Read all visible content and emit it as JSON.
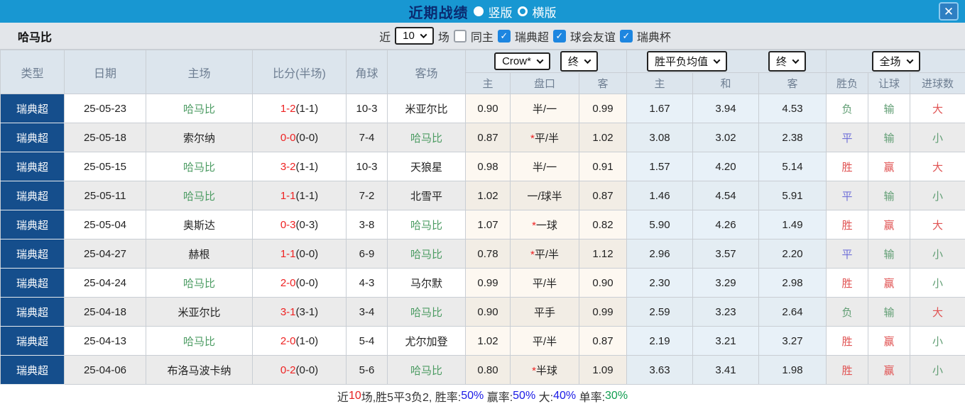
{
  "titlebar": {
    "title": "近期战绩",
    "radio_vertical": "竖版",
    "radio_horizontal": "横版",
    "close_label": "✕"
  },
  "filterbar": {
    "team": "哈马比",
    "near_label": "近",
    "count_value": "10",
    "matches_label": "场",
    "same_venue_label": "同主",
    "league_options": [
      "瑞典超",
      "球会友谊",
      "瑞典杯"
    ],
    "checkmark": "✓"
  },
  "header": {
    "col_type": "类型",
    "col_date": "日期",
    "col_home": "主场",
    "col_score": "比分(半场)",
    "col_corner": "角球",
    "col_away": "客场",
    "odds_company_select": "Crow*",
    "odds_stage_select": "终",
    "avg_select": "胜平负均值",
    "avg_stage_select": "终",
    "scope_select": "全场",
    "sub_home": "主",
    "sub_handicap": "盘口",
    "sub_away": "客",
    "sub_avg_home": "主",
    "sub_avg_draw": "和",
    "sub_avg_away": "客",
    "sub_result": "胜负",
    "sub_handicap_result": "让球",
    "sub_goals": "进球数"
  },
  "rows": [
    {
      "league": "瑞典超",
      "date": "25-05-23",
      "home": "哈马比",
      "home_green": true,
      "score": "1-2",
      "half": "(1-1)",
      "corner": "10-3",
      "away": "米亚尔比",
      "away_green": false,
      "odds_home": "0.90",
      "handicap": "半/一",
      "handicap_star": false,
      "odds_away": "0.99",
      "avg_home": "1.67",
      "avg_draw": "3.94",
      "avg_away": "4.53",
      "result": "负",
      "result_color": "green",
      "handicap_result": "输",
      "handicap_color": "green",
      "goals": "大",
      "goals_color": "red"
    },
    {
      "league": "瑞典超",
      "date": "25-05-18",
      "home": "索尔纳",
      "home_green": false,
      "score": "0-0",
      "half": "(0-0)",
      "corner": "7-4",
      "away": "哈马比",
      "away_green": true,
      "odds_home": "0.87",
      "handicap": "平/半",
      "handicap_star": true,
      "odds_away": "1.02",
      "avg_home": "3.08",
      "avg_draw": "3.02",
      "avg_away": "2.38",
      "result": "平",
      "result_color": "blue",
      "handicap_result": "输",
      "handicap_color": "green",
      "goals": "小",
      "goals_color": "green"
    },
    {
      "league": "瑞典超",
      "date": "25-05-15",
      "home": "哈马比",
      "home_green": true,
      "score": "3-2",
      "half": "(1-1)",
      "corner": "10-3",
      "away": "天狼星",
      "away_green": false,
      "odds_home": "0.98",
      "handicap": "半/一",
      "handicap_star": false,
      "odds_away": "0.91",
      "avg_home": "1.57",
      "avg_draw": "4.20",
      "avg_away": "5.14",
      "result": "胜",
      "result_color": "red",
      "handicap_result": "赢",
      "handicap_color": "red",
      "goals": "大",
      "goals_color": "red"
    },
    {
      "league": "瑞典超",
      "date": "25-05-11",
      "home": "哈马比",
      "home_green": true,
      "score": "1-1",
      "half": "(1-1)",
      "corner": "7-2",
      "away": "北雪平",
      "away_green": false,
      "odds_home": "1.02",
      "handicap": "一/球半",
      "handicap_star": false,
      "odds_away": "0.87",
      "avg_home": "1.46",
      "avg_draw": "4.54",
      "avg_away": "5.91",
      "result": "平",
      "result_color": "blue",
      "handicap_result": "输",
      "handicap_color": "green",
      "goals": "小",
      "goals_color": "green"
    },
    {
      "league": "瑞典超",
      "date": "25-05-04",
      "home": "奥斯达",
      "home_green": false,
      "score": "0-3",
      "half": "(0-3)",
      "corner": "3-8",
      "away": "哈马比",
      "away_green": true,
      "odds_home": "1.07",
      "handicap": "一球",
      "handicap_star": true,
      "odds_away": "0.82",
      "avg_home": "5.90",
      "avg_draw": "4.26",
      "avg_away": "1.49",
      "result": "胜",
      "result_color": "red",
      "handicap_result": "赢",
      "handicap_color": "red",
      "goals": "大",
      "goals_color": "red"
    },
    {
      "league": "瑞典超",
      "date": "25-04-27",
      "home": "赫根",
      "home_green": false,
      "score": "1-1",
      "half": "(0-0)",
      "corner": "6-9",
      "away": "哈马比",
      "away_green": true,
      "odds_home": "0.78",
      "handicap": "平/半",
      "handicap_star": true,
      "odds_away": "1.12",
      "avg_home": "2.96",
      "avg_draw": "3.57",
      "avg_away": "2.20",
      "result": "平",
      "result_color": "blue",
      "handicap_result": "输",
      "handicap_color": "green",
      "goals": "小",
      "goals_color": "green"
    },
    {
      "league": "瑞典超",
      "date": "25-04-24",
      "home": "哈马比",
      "home_green": true,
      "score": "2-0",
      "half": "(0-0)",
      "corner": "4-3",
      "away": "马尔默",
      "away_green": false,
      "odds_home": "0.99",
      "handicap": "平/半",
      "handicap_star": false,
      "odds_away": "0.90",
      "avg_home": "2.30",
      "avg_draw": "3.29",
      "avg_away": "2.98",
      "result": "胜",
      "result_color": "red",
      "handicap_result": "赢",
      "handicap_color": "red",
      "goals": "小",
      "goals_color": "green"
    },
    {
      "league": "瑞典超",
      "date": "25-04-18",
      "home": "米亚尔比",
      "home_green": false,
      "score": "3-1",
      "half": "(3-1)",
      "corner": "3-4",
      "away": "哈马比",
      "away_green": true,
      "odds_home": "0.90",
      "handicap": "平手",
      "handicap_star": false,
      "odds_away": "0.99",
      "avg_home": "2.59",
      "avg_draw": "3.23",
      "avg_away": "2.64",
      "result": "负",
      "result_color": "green",
      "handicap_result": "输",
      "handicap_color": "green",
      "goals": "大",
      "goals_color": "red"
    },
    {
      "league": "瑞典超",
      "date": "25-04-13",
      "home": "哈马比",
      "home_green": true,
      "score": "2-0",
      "half": "(1-0)",
      "corner": "5-4",
      "away": "尤尔加登",
      "away_green": false,
      "odds_home": "1.02",
      "handicap": "平/半",
      "handicap_star": false,
      "odds_away": "0.87",
      "avg_home": "2.19",
      "avg_draw": "3.21",
      "avg_away": "3.27",
      "result": "胜",
      "result_color": "red",
      "handicap_result": "赢",
      "handicap_color": "red",
      "goals": "小",
      "goals_color": "green"
    },
    {
      "league": "瑞典超",
      "date": "25-04-06",
      "home": "布洛马波卡纳",
      "home_green": false,
      "score": "0-2",
      "half": "(0-0)",
      "corner": "5-6",
      "away": "哈马比",
      "away_green": true,
      "odds_home": "0.80",
      "handicap": "半球",
      "handicap_star": true,
      "odds_away": "1.09",
      "avg_home": "3.63",
      "avg_draw": "3.41",
      "avg_away": "1.98",
      "result": "胜",
      "result_color": "red",
      "handicap_result": "赢",
      "handicap_color": "red",
      "goals": "小",
      "goals_color": "green"
    }
  ],
  "summary": {
    "segments": [
      {
        "text": "近",
        "color": "dark"
      },
      {
        "text": "10",
        "color": "red"
      },
      {
        "text": "场,胜5平3负2, 胜率:",
        "color": "dark"
      },
      {
        "text": "50%",
        "color": "blue"
      },
      {
        "text": " 赢率:",
        "color": "dark"
      },
      {
        "text": "50%",
        "color": "blue"
      },
      {
        "text": " 大:",
        "color": "dark"
      },
      {
        "text": "40%",
        "color": "blue"
      },
      {
        "text": " 单率:",
        "color": "dark"
      },
      {
        "text": "30%",
        "color": "green"
      }
    ]
  },
  "colors": {
    "titlebar_bg": "#1897d2",
    "title_text": "#0a2a70",
    "type_cell_bg": "#154e8c",
    "header_bg": "#dce5ed",
    "odds_cream_bg": "#fdf8f1",
    "avg_blue_bg": "#e8f1f8",
    "win_red": "#e05353",
    "loss_green": "#619e74",
    "draw_blue": "#7070d8",
    "score_red": "#ee2222",
    "focus_team_green": "#4b9b62",
    "checkbox_blue": "#1d86e0"
  }
}
